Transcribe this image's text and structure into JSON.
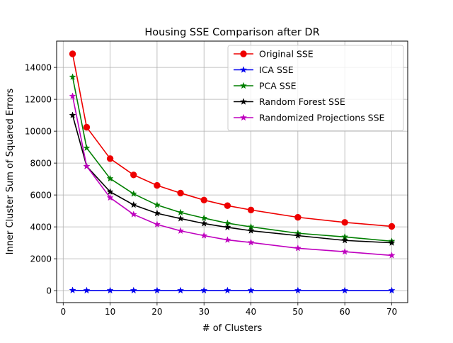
{
  "chart_data": {
    "type": "line",
    "title": "Housing SSE Comparison after DR",
    "xlabel": "# of Clusters",
    "ylabel": "Inner Cluster Sum of Squared Errors",
    "xlim": [
      -1.4,
      73.4
    ],
    "ylim": [
      -750,
      15650
    ],
    "xticks": [
      0,
      10,
      20,
      30,
      40,
      50,
      60,
      70
    ],
    "yticks": [
      0,
      2000,
      4000,
      6000,
      8000,
      10000,
      12000,
      14000
    ],
    "grid": true,
    "legend_position": "top-right",
    "x": [
      2,
      5,
      10,
      15,
      20,
      25,
      30,
      35,
      40,
      50,
      60,
      70
    ],
    "series": [
      {
        "name": "Original SSE",
        "color": "#ee0000",
        "marker": "circle",
        "values": [
          14850,
          10250,
          8280,
          7260,
          6600,
          6120,
          5680,
          5330,
          5060,
          4600,
          4280,
          4030
        ]
      },
      {
        "name": "ICA SSE",
        "color": "#0000ee",
        "marker": "star",
        "values": [
          20,
          10,
          10,
          10,
          10,
          10,
          10,
          10,
          10,
          10,
          10,
          10
        ]
      },
      {
        "name": "PCA SSE",
        "color": "#007f00",
        "marker": "star",
        "values": [
          13400,
          8950,
          7030,
          6070,
          5370,
          4900,
          4550,
          4230,
          4000,
          3600,
          3370,
          3100
        ]
      },
      {
        "name": "Random Forest SSE",
        "color": "#000000",
        "marker": "star",
        "values": [
          11000,
          7800,
          6200,
          5380,
          4850,
          4520,
          4210,
          3970,
          3760,
          3450,
          3150,
          3000
        ]
      },
      {
        "name": "Randomized Projections SSE",
        "color": "#bf00bf",
        "marker": "star",
        "values": [
          12200,
          7800,
          5830,
          4780,
          4150,
          3750,
          3450,
          3180,
          3020,
          2660,
          2440,
          2210
        ]
      }
    ]
  }
}
